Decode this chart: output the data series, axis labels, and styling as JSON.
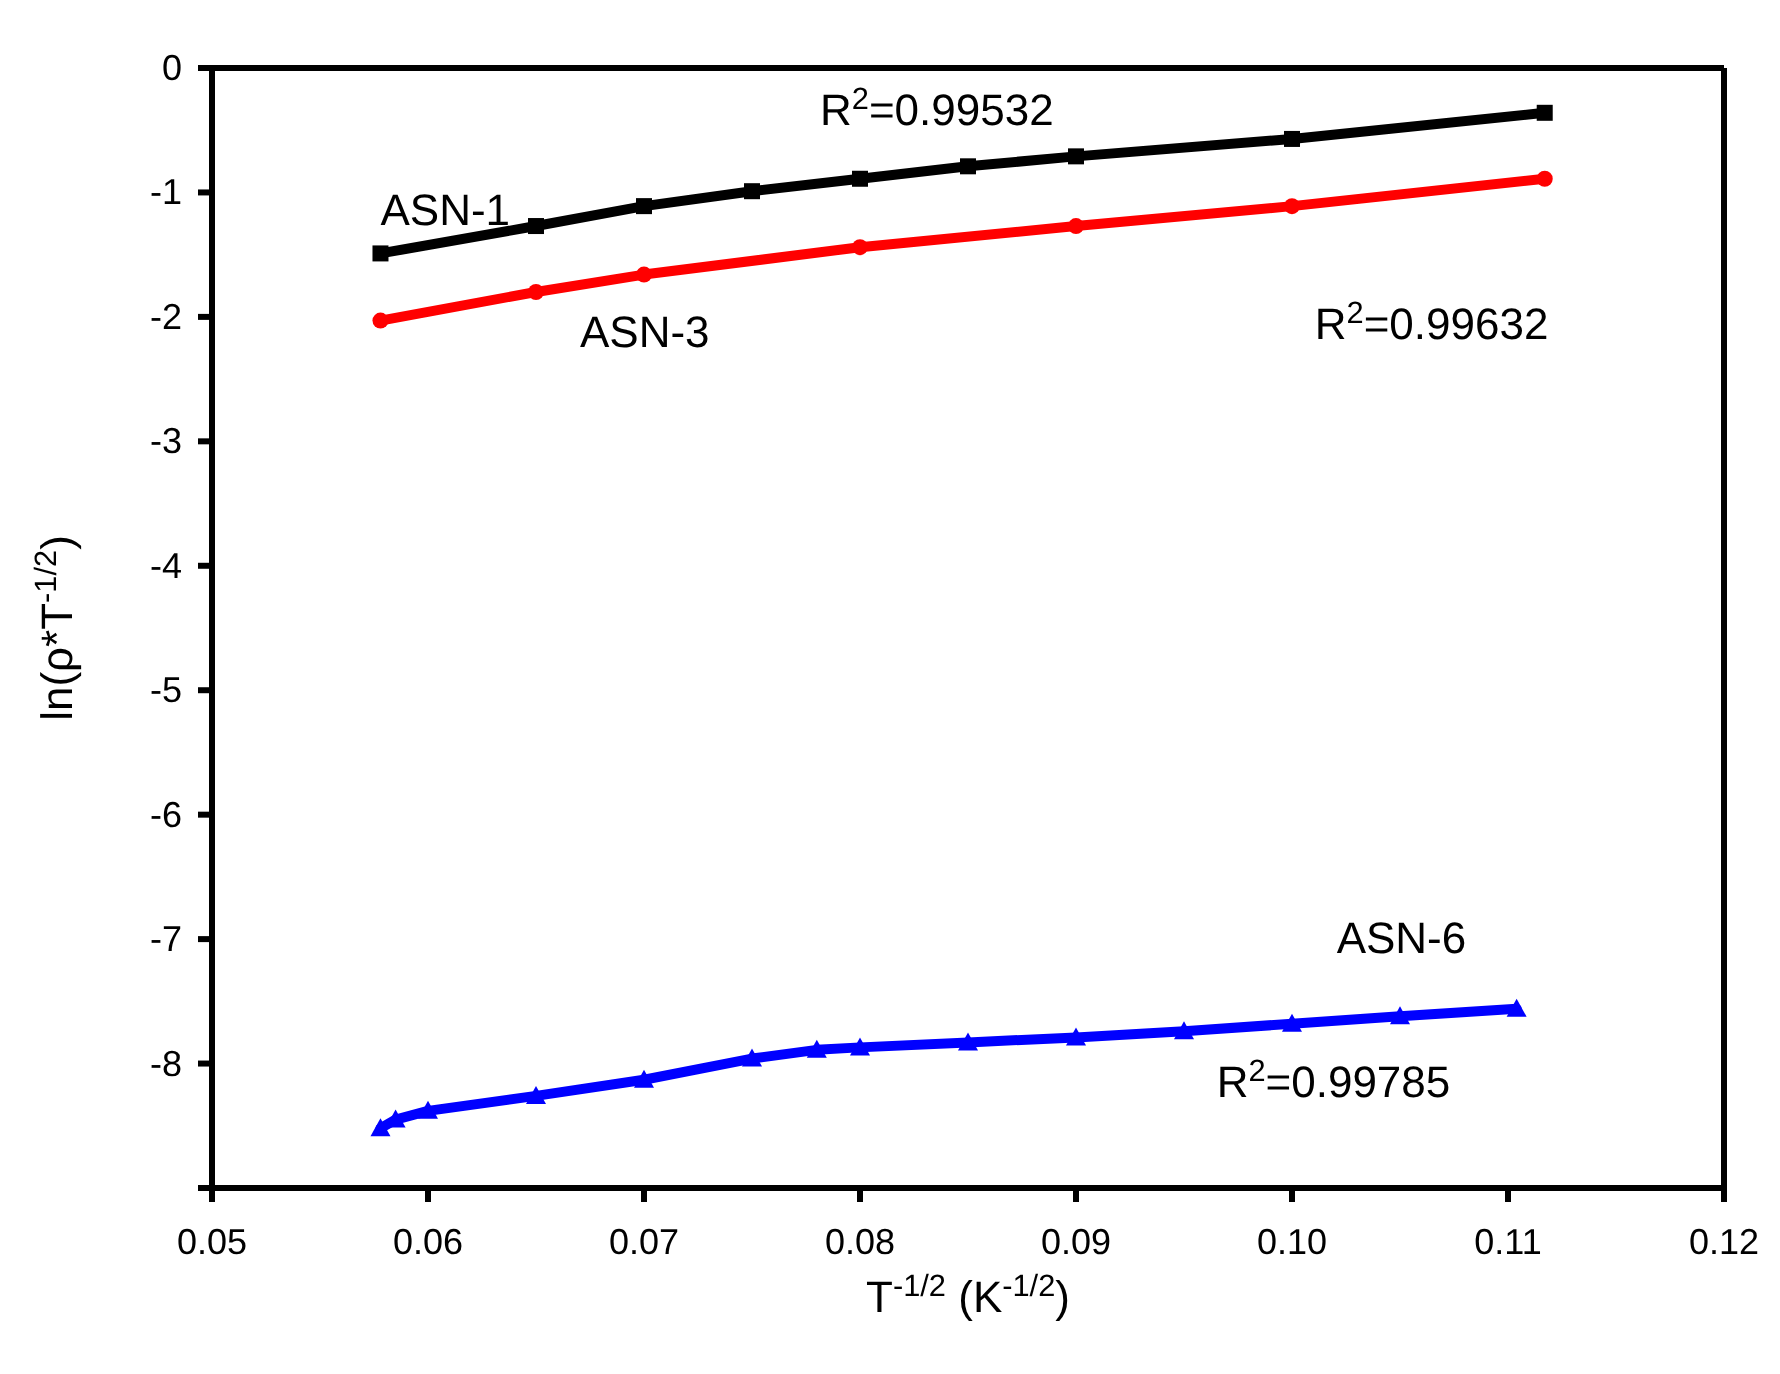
{
  "chart_data": {
    "type": "line",
    "xlabel": "T$^{-1/2}$ (K$^{-1/2}$)",
    "ylabel": "ln(ρ*T$^{-1/2}$)",
    "xlim": [
      0.05,
      0.12
    ],
    "xticks": [
      0.05,
      0.06,
      0.07,
      0.08,
      0.09,
      {
        "value": 0.1,
        "label": "0.10"
      },
      0.11,
      {
        "value": 0.12,
        "label": "0.12"
      }
    ],
    "ylim": [
      -9,
      0
    ],
    "yticks": [
      {
        "value": -9,
        "label": null
      },
      -8,
      -7,
      -6,
      -5,
      -4,
      -3,
      -2,
      -1,
      0
    ],
    "grid": false,
    "legend": false,
    "annotations": [
      "R$^{2}$=0.99532",
      "R$^{2}$=0.99632",
      "R$^{2}$=0.99785"
    ],
    "series": [
      {
        "name": "ASN-1",
        "color": "#000000",
        "marker": "square",
        "x": [
          0.0578,
          0.065,
          0.07,
          0.075,
          0.08,
          0.085,
          0.09,
          0.1,
          0.1117
        ],
        "values": [
          -1.49,
          -1.27,
          -1.11,
          -0.99,
          -0.89,
          -0.79,
          -0.71,
          -0.57,
          -0.36
        ]
      },
      {
        "name": "ASN-3",
        "color": "#ff0000",
        "marker": "circle",
        "x": [
          0.0578,
          0.065,
          0.07,
          0.08,
          0.09,
          0.1,
          0.1117
        ],
        "values": [
          -2.03,
          -1.8,
          -1.66,
          -1.44,
          -1.27,
          -1.11,
          -0.89
        ]
      },
      {
        "name": "ASN-6",
        "color": "#0000ff",
        "marker": "triangle",
        "x": [
          0.0578,
          0.0585,
          0.06,
          0.065,
          0.07,
          0.075,
          0.078,
          0.08,
          0.085,
          0.09,
          0.095,
          0.1,
          0.105,
          0.1104
        ],
        "values": [
          -8.52,
          -8.45,
          -8.38,
          -8.26,
          -8.13,
          -7.96,
          -7.89,
          -7.87,
          -7.83,
          -7.79,
          -7.74,
          -7.68,
          -7.62,
          -7.56
        ]
      }
    ]
  }
}
